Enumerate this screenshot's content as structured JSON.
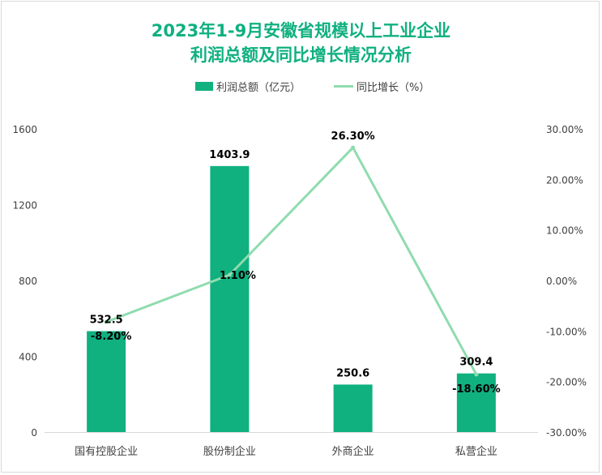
{
  "title_line1": "2023年1-9月安徽省规模以上工业企业",
  "title_line2": "利润总额及同比增长情况分析",
  "colors": {
    "bar": "#10b07f",
    "line": "#8fdcae",
    "title": "#10b07f"
  },
  "chart_data": {
    "type": "bar",
    "categories": [
      "国有控股企业",
      "股份制企业",
      "外商企业",
      "私营企业"
    ],
    "series": [
      {
        "name": "利润总额（亿元）",
        "type": "bar",
        "axis": "left",
        "values": [
          532.5,
          1403.9,
          250.6,
          309.4
        ],
        "labels": [
          "532.5",
          "1403.9",
          "250.6",
          "309.4"
        ]
      },
      {
        "name": "同比增长（%）",
        "type": "line",
        "axis": "right",
        "values": [
          -8.2,
          1.1,
          26.3,
          -18.6
        ],
        "labels": [
          "-8.20%",
          "1.10%",
          "26.30%",
          "-18.60%"
        ]
      }
    ],
    "y_left": {
      "min": 0,
      "max": 1600,
      "ticks": [
        "0",
        "400",
        "800",
        "1200",
        "1600"
      ]
    },
    "y_right": {
      "min": -30,
      "max": 30,
      "ticks": [
        "-30.00%",
        "-20.00%",
        "-10.00%",
        "0.00%",
        "10.00%",
        "20.00%",
        "30.00%"
      ]
    },
    "legend_position": "top"
  }
}
